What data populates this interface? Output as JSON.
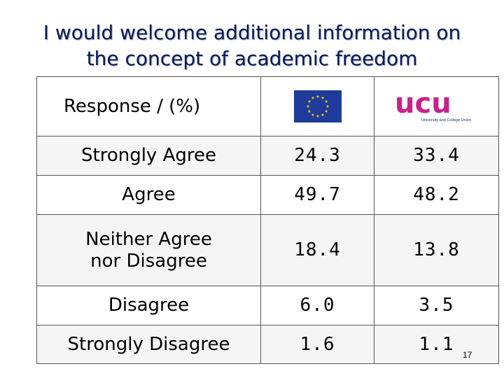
{
  "slide": {
    "title_line1": "I would welcome additional information on",
    "title_line2": "the concept of academic freedom",
    "page_number": "17",
    "colors": {
      "title": "#0b1a55",
      "eu_flag_blue": "#1f3b9a",
      "eu_flag_stars": "#ffcc00",
      "ucu_magenta": "#c8228a",
      "ucu_navy": "#1d2a6b"
    }
  },
  "table": {
    "header_label": "Response / (%)",
    "columns": [
      {
        "logo": "eu-flag-icon"
      },
      {
        "logo": "ucu-logo",
        "logo_text": "ucu",
        "logo_subtext": "University and College Union"
      }
    ],
    "rows": [
      {
        "label": "Strongly Agree",
        "eu": "24.3",
        "ucu": "33.4"
      },
      {
        "label": "Agree",
        "eu": "49.7",
        "ucu": "48.2"
      },
      {
        "label_line1": "Neither Agree",
        "label_line2": "nor Disagree",
        "eu": "18.4",
        "ucu": "13.8"
      },
      {
        "label": "Disagree",
        "eu": "6.0",
        "ucu": "3.5"
      },
      {
        "label": "Strongly Disagree",
        "eu": "1.6",
        "ucu": "1.1"
      }
    ]
  }
}
